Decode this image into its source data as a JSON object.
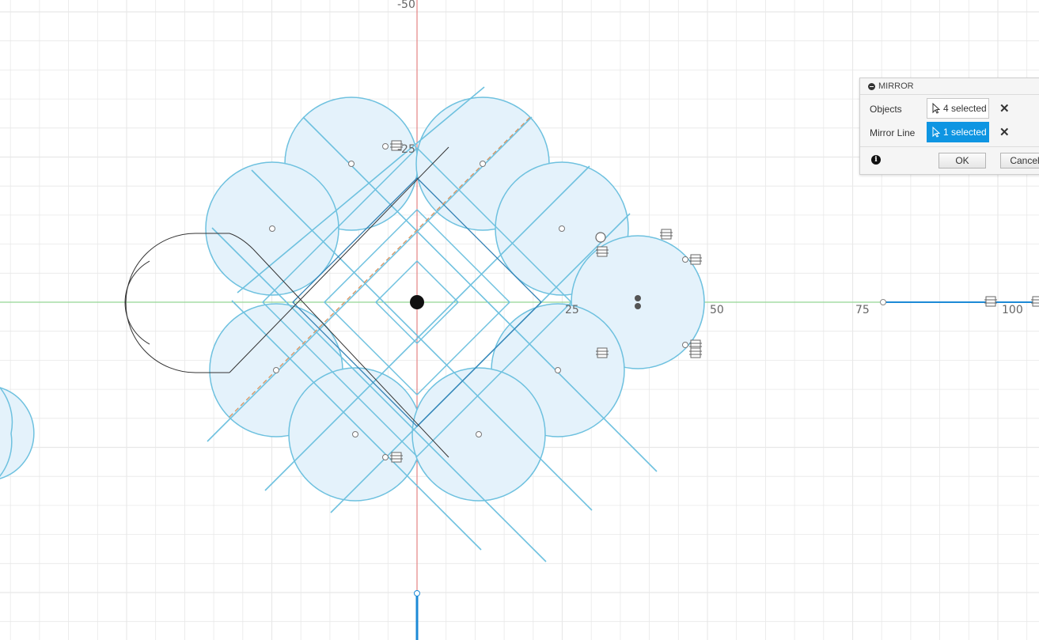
{
  "canvas": {
    "colors": {
      "grid": "#e8e8e8",
      "x_axis": "#7fd17f",
      "y_axis": "#e36f6f",
      "profile_stroke": "#6ec1df",
      "profile_fill": "#e4f2fb",
      "mirror_line": "#d9925e",
      "sketch_line": "#333333",
      "selected_line": "#1c8ad6"
    },
    "axis_labels": {
      "y_top": "-50",
      "y_minus25": "-25",
      "x_25": "25",
      "x_50": "50",
      "x_75": "75",
      "x_100": "100"
    }
  },
  "mirror_dialog": {
    "title": "MIRROR",
    "objects_label": "Objects",
    "objects_value": "4 selected",
    "mirror_line_label": "Mirror Line",
    "mirror_line_value": "1 selected",
    "ok_label": "OK",
    "cancel_label": "Cancel",
    "colors": {
      "active": "#0e95e2"
    }
  }
}
